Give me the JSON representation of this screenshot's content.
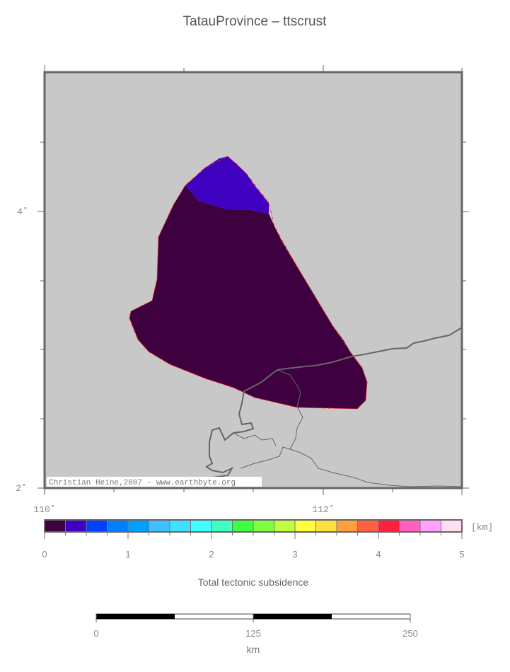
{
  "title": "TatauProvince – ttscrust",
  "map": {
    "lon_ticks": [
      "110˚",
      "112˚"
    ],
    "lat_ticks": [
      "4˚",
      "2˚"
    ],
    "credit": "Christian Heine,2007 - www.earthbyte.org",
    "background_color": "#c8c8c8",
    "province_fill_main": "#3f003f",
    "province_fill_north": "#4000bf",
    "outline_color": "#ff2020"
  },
  "colorbar": {
    "unit": "[km]",
    "tick_labels": [
      "0",
      "1",
      "2",
      "3",
      "4",
      "5"
    ],
    "range": [
      0,
      5
    ],
    "colors": [
      "#3f003f",
      "#4000bf",
      "#0040ff",
      "#0080ff",
      "#00a0ff",
      "#40c0ff",
      "#40e0ff",
      "#40ffff",
      "#40ffc0",
      "#40ff40",
      "#80ff40",
      "#c0ff40",
      "#ffff40",
      "#ffe040",
      "#ffa040",
      "#ff6040",
      "#ff2040",
      "#ff60c0",
      "#ffa0ff",
      "#ffe0f0"
    ],
    "label": "Total tectonic subsidence"
  },
  "scalebar": {
    "tick_labels": [
      "0",
      "125",
      "250"
    ],
    "unit": "km"
  }
}
